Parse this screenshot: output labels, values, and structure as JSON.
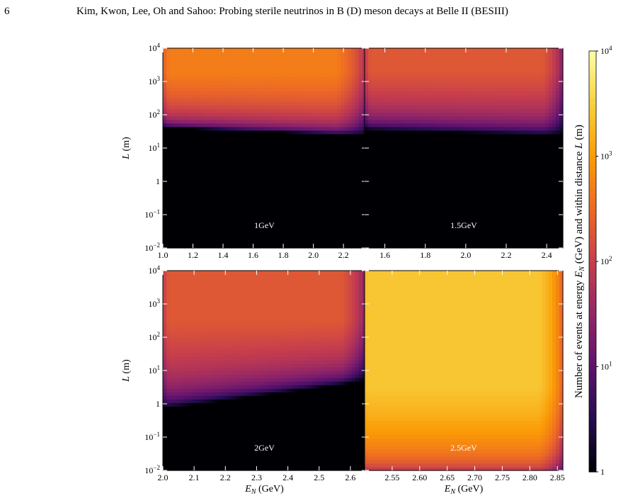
{
  "header": {
    "page_number": "6",
    "running_title": "Kim, Kwon, Lee, Oh and Sahoo: Probing sterile neutrinos in B (D) meson decays at Belle II (BESIII)"
  },
  "colors": {
    "background": "#000000",
    "panel_label": "#ffffff",
    "colormap": [
      "#000004",
      "#240c4f",
      "#5d126e",
      "#932667",
      "#c73e4c",
      "#ed6925",
      "#fb9b06",
      "#f7d13d",
      "#fcffa4"
    ]
  },
  "chart_data": {
    "type": "heatmap",
    "colormap": "inferno",
    "colorbar": {
      "label": "Number of events at energy E_N (GeV) and within distance L (m)",
      "label_parts": [
        "Number of events at energy ",
        "E",
        "N",
        " (GeV) and within distance ",
        "L",
        " (m)"
      ],
      "scale": "log",
      "range": [
        1,
        10000
      ],
      "ticks": [
        {
          "value": 1,
          "label": "1"
        },
        {
          "value": 10,
          "base": "10",
          "exp": "1"
        },
        {
          "value": 100,
          "base": "10",
          "exp": "2"
        },
        {
          "value": 1000,
          "base": "10",
          "exp": "3"
        },
        {
          "value": 10000,
          "base": "10",
          "exp": "4"
        }
      ]
    },
    "y_axis": {
      "label": "L (m)",
      "label_parts": [
        "L",
        " (m)"
      ],
      "scale": "log",
      "range": [
        0.01,
        10000
      ],
      "ticks": [
        {
          "value": 0.01,
          "base": "10",
          "exp": "−2"
        },
        {
          "value": 0.1,
          "base": "10",
          "exp": "−1"
        },
        {
          "value": 1,
          "label": "1"
        },
        {
          "value": 10,
          "base": "10",
          "exp": "1"
        },
        {
          "value": 100,
          "base": "10",
          "exp": "2"
        },
        {
          "value": 1000,
          "base": "10",
          "exp": "3"
        },
        {
          "value": 10000,
          "base": "10",
          "exp": "4"
        }
      ]
    },
    "x_axis": {
      "label": "E_N (GeV)",
      "label_parts": [
        "E",
        "N",
        " (GeV)"
      ]
    },
    "panels": [
      {
        "label": "1GeV",
        "xlim": [
          1.0,
          2.35
        ],
        "x_ticks": [
          "1.0",
          "1.2",
          "1.4",
          "1.6",
          "1.8",
          "2.0",
          "2.2"
        ],
        "x_tick_values": [
          1.0,
          1.2,
          1.4,
          1.6,
          1.8,
          2.0,
          2.2
        ],
        "show_ylabel": false,
        "show_xlabel": false,
        "profile": {
          "e_lo": 1.0,
          "e_hi": 2.35,
          "edge_lo": 70,
          "edge_hi": 40,
          "l_core": 600,
          "l_mid": 120,
          "l_max": 10000,
          "peak": 500,
          "drop_lo": 0.03,
          "drop_hi": 0.15
        }
      },
      {
        "label": "1.5GeV",
        "xlim": [
          1.5,
          2.48
        ],
        "x_ticks": [
          "1.6",
          "1.8",
          "2.0",
          "2.2",
          "2.4"
        ],
        "x_tick_values": [
          1.6,
          1.8,
          2.0,
          2.2,
          2.4
        ],
        "show_ylabel": false,
        "show_xlabel": false,
        "profile": {
          "e_lo": 1.5,
          "e_hi": 2.48,
          "edge_lo": 60,
          "edge_hi": 40,
          "l_core": 700,
          "l_mid": 100,
          "l_max": 10000,
          "peak": 200,
          "drop_lo": 0.03,
          "drop_hi": 0.1
        }
      },
      {
        "label": "2GeV",
        "xlim": [
          2.0,
          2.65
        ],
        "x_ticks": [
          "2.0",
          "2.1",
          "2.2",
          "2.3",
          "2.4",
          "2.5",
          "2.6"
        ],
        "x_tick_values": [
          2.0,
          2.1,
          2.2,
          2.3,
          2.4,
          2.5,
          2.6
        ],
        "show_ylabel": false,
        "show_xlabel": true,
        "profile": {
          "e_lo": 2.0,
          "e_hi": 2.65,
          "edge_lo": 1.2,
          "edge_hi": 8,
          "l_core": 100,
          "l_mid": 20,
          "l_max": 10000,
          "peak": 200,
          "drop_lo": 0.03,
          "drop_hi": 0.12
        }
      },
      {
        "label": "2.5GeV",
        "xlim": [
          2.5,
          2.86
        ],
        "x_ticks": [
          "2.55",
          "2.60",
          "2.65",
          "2.70",
          "2.75",
          "2.80",
          "2.85"
        ],
        "x_tick_values": [
          2.55,
          2.6,
          2.65,
          2.7,
          2.75,
          2.8,
          2.85
        ],
        "show_ylabel": false,
        "show_xlabel": true,
        "profile": {
          "e_lo": 2.5,
          "e_hi": 2.86,
          "edge_lo": 0.01,
          "edge_hi": 0.01,
          "l_core": 0.01,
          "l_mid": 0.01,
          "l_max": 10000,
          "peak": 2500,
          "drop_lo": 0.01,
          "drop_hi": 0.12
        }
      }
    ]
  }
}
